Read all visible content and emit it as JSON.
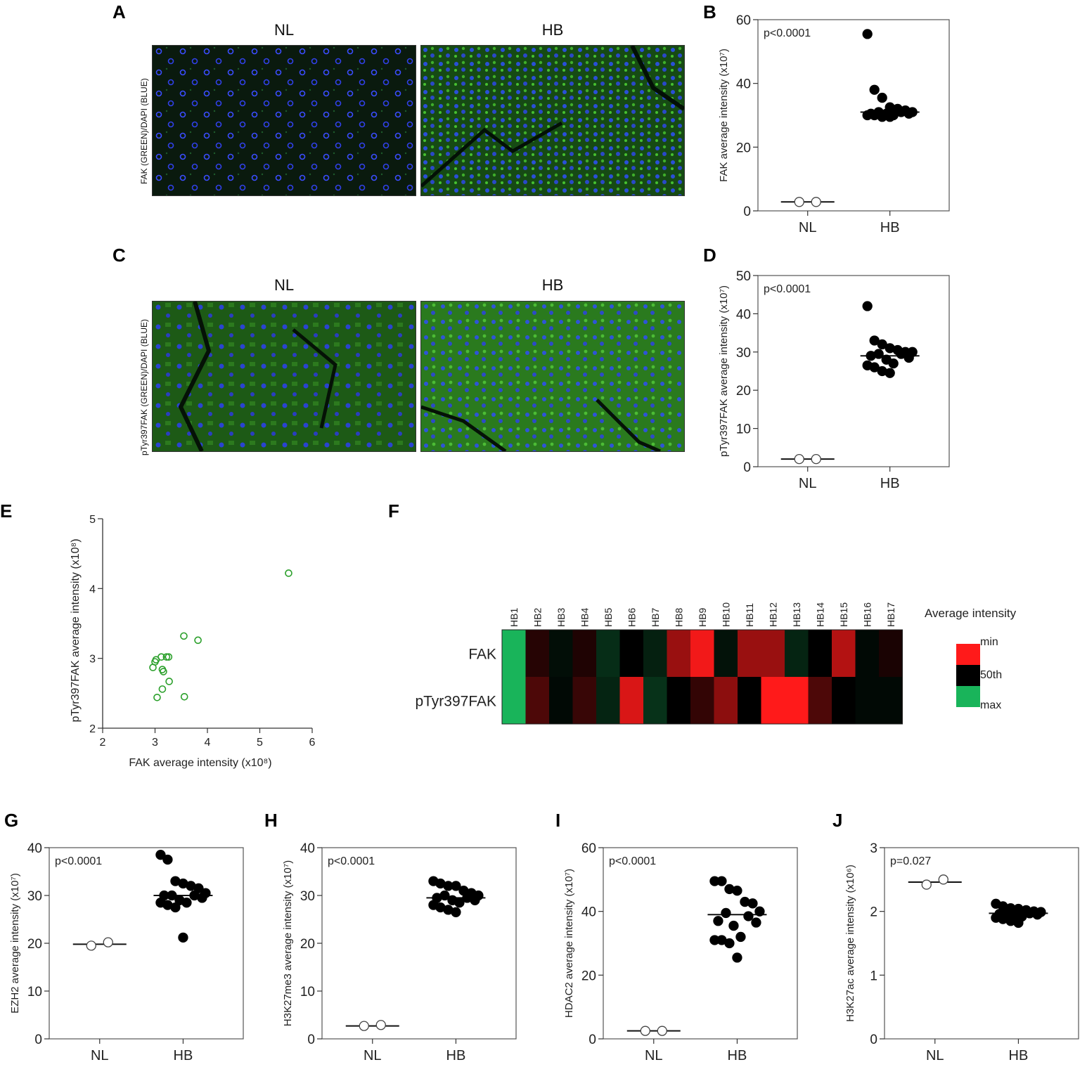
{
  "panels": {
    "A": {
      "letter": "A",
      "ylabel": "FAK (GREEN)/DAPI (BLUE)",
      "titles": [
        "NL",
        "HB"
      ]
    },
    "C": {
      "letter": "C",
      "ylabel": "pTyr397FAK (GREEN)/DAPI (BLUE)",
      "titles": [
        "NL",
        "HB"
      ]
    },
    "F": {
      "letter": "F",
      "columns": [
        "HB1",
        "HB2",
        "HB3",
        "HB4",
        "HB5",
        "HB6",
        "HB7",
        "HB8",
        "HB9",
        "HB10",
        "HB11",
        "HB12",
        "HB13",
        "HB14",
        "HB15",
        "HB16",
        "HB17"
      ],
      "rows": [
        "FAK",
        "pTyr397FAK"
      ],
      "legend_title": "Average intensity",
      "legend_labels": [
        "min",
        "50th",
        "max"
      ],
      "colors": {
        "min": "#ff1a1a",
        "mid": "#000000",
        "max": "#19b45a"
      }
    }
  },
  "chart_data": [
    {
      "id": "B",
      "letter": "B",
      "type": "scatter",
      "ylabel": "FAK average intensity (x10⁷)",
      "ylim": [
        0,
        60
      ],
      "yticks": [
        0,
        20,
        40,
        60
      ],
      "categories": [
        "NL",
        "HB"
      ],
      "pvalue": "p<0.0001",
      "series": [
        {
          "group": "NL",
          "marker": "open",
          "median": 2.8,
          "values": [
            2.8,
            2.8
          ]
        },
        {
          "group": "HB",
          "marker": "filled",
          "median": 31,
          "values": [
            55.5,
            38,
            35.5,
            32.5,
            32,
            31.5,
            31,
            31,
            31,
            30.5,
            30.5,
            30.5,
            30,
            30,
            30,
            29.5,
            29.5
          ]
        }
      ]
    },
    {
      "id": "D",
      "letter": "D",
      "type": "scatter",
      "ylabel": "pTyr397FAK average intensity (x10⁷)",
      "ylim": [
        0,
        50
      ],
      "yticks": [
        0,
        10,
        20,
        30,
        40,
        50
      ],
      "categories": [
        "NL",
        "HB"
      ],
      "pvalue": "p<0.0001",
      "series": [
        {
          "group": "NL",
          "marker": "open",
          "median": 2,
          "values": [
            2,
            2
          ]
        },
        {
          "group": "HB",
          "marker": "filled",
          "median": 29,
          "values": [
            42,
            33,
            32,
            31,
            30.5,
            30,
            30,
            29.5,
            29.5,
            29,
            28.5,
            28,
            27,
            26.5,
            26,
            25,
            24.5
          ]
        }
      ]
    },
    {
      "id": "E",
      "letter": "E",
      "type": "scatter",
      "xlabel": "FAK average intensity (x10⁸)",
      "ylabel": "pTyr397FAK average intensity (x10⁸)",
      "xlim": [
        2,
        6
      ],
      "ylim": [
        2,
        5
      ],
      "xticks": [
        2,
        3,
        4,
        5,
        6
      ],
      "yticks": [
        2,
        3,
        4,
        5
      ],
      "color": "#2ca02c",
      "points": [
        {
          "x": 5.55,
          "y": 4.22
        },
        {
          "x": 3.55,
          "y": 3.32
        },
        {
          "x": 3.82,
          "y": 3.26
        },
        {
          "x": 3.12,
          "y": 3.02
        },
        {
          "x": 3.22,
          "y": 3.02
        },
        {
          "x": 3.26,
          "y": 3.02
        },
        {
          "x": 3.02,
          "y": 2.98
        },
        {
          "x": 3.0,
          "y": 2.95
        },
        {
          "x": 2.96,
          "y": 2.87
        },
        {
          "x": 3.14,
          "y": 2.84
        },
        {
          "x": 3.16,
          "y": 2.81
        },
        {
          "x": 3.27,
          "y": 2.67
        },
        {
          "x": 3.14,
          "y": 2.56
        },
        {
          "x": 3.04,
          "y": 2.44
        },
        {
          "x": 3.56,
          "y": 2.45
        }
      ]
    },
    {
      "id": "G",
      "letter": "G",
      "type": "scatter",
      "ylabel": "EZH2 average intensity (x10⁷)",
      "ylim": [
        0,
        40
      ],
      "yticks": [
        0,
        10,
        20,
        30,
        40
      ],
      "categories": [
        "NL",
        "HB"
      ],
      "pvalue": "p<0.0001",
      "series": [
        {
          "group": "NL",
          "marker": "open",
          "median": 19.8,
          "values": [
            19.5,
            20.2
          ]
        },
        {
          "group": "HB",
          "marker": "filled",
          "median": 30,
          "values": [
            38.5,
            37.5,
            33,
            32.5,
            32,
            31.5,
            30.5,
            30,
            30,
            30,
            29.5,
            29,
            28.5,
            28.5,
            28,
            27.5,
            21.2
          ]
        }
      ]
    },
    {
      "id": "H",
      "letter": "H",
      "type": "scatter",
      "ylabel": "H3K27me3 average intensity (x10⁷)",
      "ylim": [
        0,
        40
      ],
      "yticks": [
        0,
        10,
        20,
        30,
        40
      ],
      "categories": [
        "NL",
        "HB"
      ],
      "pvalue": "p<0.0001",
      "series": [
        {
          "group": "NL",
          "marker": "open",
          "median": 2.7,
          "values": [
            2.7,
            2.9
          ]
        },
        {
          "group": "HB",
          "marker": "filled",
          "median": 29.5,
          "values": [
            33,
            32.5,
            32,
            32,
            31,
            30.5,
            30,
            30,
            29.5,
            29.5,
            29,
            29,
            28.5,
            28,
            27.5,
            27,
            26.5
          ]
        }
      ]
    },
    {
      "id": "I",
      "letter": "I",
      "type": "scatter",
      "ylabel": "HDAC2 average intensity (x10⁷)",
      "ylim": [
        0,
        60
      ],
      "yticks": [
        0,
        20,
        40,
        60
      ],
      "categories": [
        "NL",
        "HB"
      ],
      "pvalue": "p<0.0001",
      "series": [
        {
          "group": "NL",
          "marker": "open",
          "median": 2.5,
          "values": [
            2.5,
            2.5
          ]
        },
        {
          "group": "HB",
          "marker": "filled",
          "median": 39,
          "values": [
            49.5,
            49.5,
            47,
            46.5,
            43,
            42.5,
            40,
            39.5,
            38.5,
            37,
            36.5,
            35.5,
            32,
            31,
            31,
            30,
            25.5
          ]
        }
      ]
    },
    {
      "id": "J",
      "letter": "J",
      "type": "scatter",
      "ylabel": "H3K27ac average intensity (x10⁶)",
      "ylim": [
        0,
        3
      ],
      "yticks": [
        0,
        1,
        2,
        3
      ],
      "categories": [
        "NL",
        "HB"
      ],
      "pvalue": "p=0.027",
      "series": [
        {
          "group": "NL",
          "marker": "open",
          "median": 2.46,
          "values": [
            2.42,
            2.5
          ]
        },
        {
          "group": "HB",
          "marker": "filled",
          "median": 1.97,
          "values": [
            2.12,
            2.08,
            2.05,
            2.04,
            2.02,
            2.0,
            1.99,
            1.98,
            1.97,
            1.96,
            1.95,
            1.94,
            1.92,
            1.9,
            1.88,
            1.85,
            1.82
          ]
        }
      ]
    },
    {
      "id": "F",
      "letter": "F",
      "type": "heatmap",
      "x": [
        "HB1",
        "HB2",
        "HB3",
        "HB4",
        "HB5",
        "HB6",
        "HB7",
        "HB8",
        "HB9",
        "HB10",
        "HB11",
        "HB12",
        "HB13",
        "HB14",
        "HB15",
        "HB16",
        "HB17"
      ],
      "y": [
        "FAK",
        "pTyr397FAK"
      ],
      "scale": "-1 = min (red), 0 = 50th (black), +1 = max (green)",
      "values": [
        [
          1.0,
          -0.15,
          0.08,
          -0.12,
          0.25,
          0.0,
          0.18,
          -0.6,
          -0.95,
          0.1,
          -0.6,
          -0.6,
          0.2,
          0.0,
          -0.7,
          0.05,
          -0.1
        ],
        [
          1.0,
          -0.3,
          0.05,
          -0.22,
          0.2,
          -0.85,
          0.28,
          0.0,
          -0.2,
          -0.55,
          0.0,
          -1.0,
          -1.0,
          -0.3,
          0.0,
          0.05,
          0.05
        ]
      ]
    }
  ]
}
